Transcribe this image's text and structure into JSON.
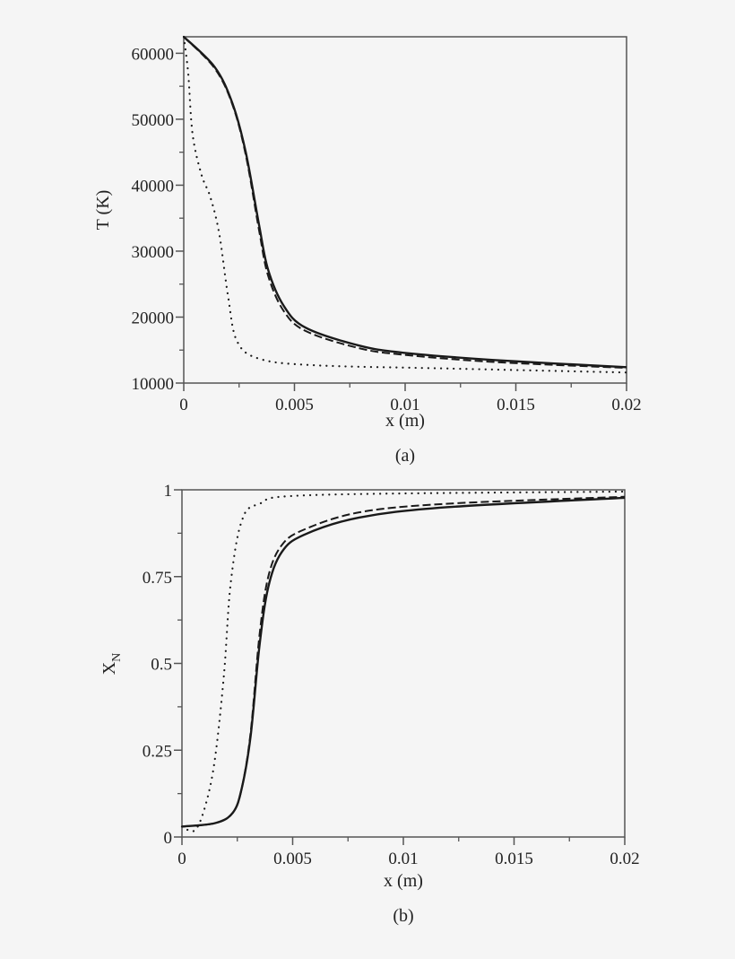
{
  "chart_data": [
    {
      "type": "line",
      "panel_label": "(a)",
      "title": "",
      "xlabel": "x (m)",
      "ylabel": "T (K)",
      "xlim": [
        0,
        0.02
      ],
      "ylim": [
        10000,
        62500
      ],
      "xticks": [
        "0",
        "0.005",
        "0.01",
        "0.015",
        "0.02"
      ],
      "xtick_values": [
        0,
        0.005,
        0.01,
        0.015,
        0.02
      ],
      "yticks": [
        "10000",
        "20000",
        "30000",
        "40000",
        "50000",
        "60000"
      ],
      "ytick_values": [
        10000,
        20000,
        30000,
        40000,
        50000,
        60000
      ],
      "grid": false,
      "legend": "none",
      "series": [
        {
          "name": "solid",
          "style": "solid",
          "x": [
            0,
            0.0014,
            0.0022,
            0.0028,
            0.0034,
            0.0038,
            0.0045,
            0.0055,
            0.0079,
            0.0099,
            0.014,
            0.02
          ],
          "values": [
            62500,
            57900,
            52400,
            45000,
            34000,
            27300,
            21800,
            18400,
            15700,
            14600,
            13500,
            12400
          ]
        },
        {
          "name": "dashed",
          "style": "dashed",
          "x": [
            0,
            0.0014,
            0.0022,
            0.0028,
            0.0034,
            0.0038,
            0.0045,
            0.0055,
            0.0079,
            0.0099,
            0.014,
            0.02
          ],
          "values": [
            62500,
            57700,
            52200,
            44600,
            33200,
            26400,
            21000,
            17900,
            15300,
            14300,
            13200,
            12300
          ]
        },
        {
          "name": "dotted",
          "style": "dotted",
          "x": [
            0,
            0.0002,
            0.0004,
            0.0008,
            0.0012,
            0.0016,
            0.002,
            0.0024,
            0.0034,
            0.0059,
            0.012,
            0.02
          ],
          "values": [
            62500,
            57000,
            47700,
            41600,
            38200,
            32700,
            23200,
            16400,
            13700,
            12700,
            12200,
            11600
          ]
        }
      ]
    },
    {
      "type": "line",
      "panel_label": "(b)",
      "title": "",
      "xlabel": "x (m)",
      "ylabel": "X_N",
      "ylabel_main": "X",
      "ylabel_sub": "N",
      "xlim": [
        0,
        0.02
      ],
      "ylim": [
        0,
        1
      ],
      "xticks": [
        "0",
        "0.005",
        "0.01",
        "0.015",
        "0.02"
      ],
      "xtick_values": [
        0,
        0.005,
        0.01,
        0.015,
        0.02
      ],
      "yticks": [
        "0",
        "0.25",
        "0.5",
        "0.75",
        "1"
      ],
      "ytick_values": [
        0,
        0.25,
        0.5,
        0.75,
        1
      ],
      "grid": false,
      "legend": "none",
      "series": [
        {
          "name": "solid",
          "style": "solid",
          "x": [
            0,
            0.0015,
            0.0023,
            0.0027,
            0.0031,
            0.0035,
            0.0039,
            0.0045,
            0.0055,
            0.008,
            0.012,
            0.02
          ],
          "values": [
            0.03,
            0.04,
            0.07,
            0.14,
            0.29,
            0.55,
            0.72,
            0.82,
            0.87,
            0.92,
            0.95,
            0.977
          ]
        },
        {
          "name": "dashed",
          "style": "dashed",
          "x": [
            0,
            0.0015,
            0.0023,
            0.0027,
            0.0031,
            0.0035,
            0.0039,
            0.0045,
            0.0055,
            0.008,
            0.012,
            0.02
          ],
          "values": [
            0.03,
            0.04,
            0.07,
            0.14,
            0.3,
            0.58,
            0.75,
            0.84,
            0.885,
            0.935,
            0.96,
            0.98
          ]
        },
        {
          "name": "dotted",
          "style": "dotted",
          "x": [
            0,
            0.0006,
            0.0011,
            0.0015,
            0.0019,
            0.0022,
            0.0027,
            0.0035,
            0.006,
            0.02
          ],
          "values": [
            0.03,
            0.02,
            0.1,
            0.23,
            0.47,
            0.73,
            0.91,
            0.96,
            0.985,
            0.995
          ]
        }
      ]
    }
  ],
  "panels": [
    {
      "label": "(a)",
      "xlabel": "x (m)",
      "ylabel": "T (K)"
    },
    {
      "label": "(b)",
      "xlabel": "x (m)",
      "ylabel_main": "X",
      "ylabel_sub": "N"
    }
  ],
  "colors": {
    "background": "#f5f5f5",
    "axes": "#333333",
    "lines": "#1a1a1a"
  }
}
